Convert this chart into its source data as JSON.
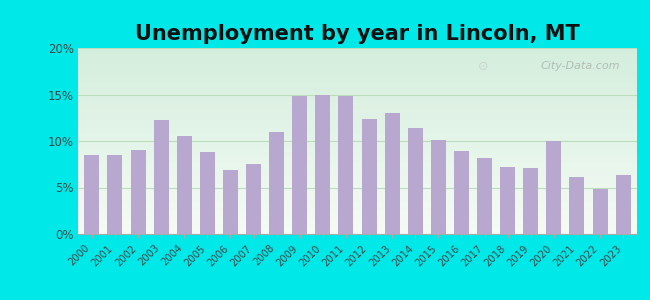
{
  "title": "Unemployment by year in Lincoln, MT",
  "years": [
    2000,
    2001,
    2002,
    2003,
    2004,
    2005,
    2006,
    2007,
    2008,
    2009,
    2010,
    2011,
    2012,
    2013,
    2014,
    2015,
    2016,
    2017,
    2018,
    2019,
    2020,
    2021,
    2022,
    2023
  ],
  "values": [
    8.5,
    8.5,
    9.0,
    12.3,
    10.5,
    8.8,
    6.9,
    7.5,
    11.0,
    14.8,
    15.0,
    14.8,
    12.4,
    13.0,
    11.4,
    10.1,
    8.9,
    8.2,
    7.2,
    7.1,
    10.0,
    6.1,
    4.8,
    6.3
  ],
  "bar_color": "#b8a8d0",
  "outer_background": "#00e8e8",
  "plot_bg_top": "#f0faf0",
  "plot_bg_bottom": "#d0f0d8",
  "ylim": [
    0,
    20
  ],
  "yticks": [
    0,
    5,
    10,
    15,
    20
  ],
  "title_fontsize": 15,
  "watermark": "City-Data.com",
  "grid_color": "#c8e8c8"
}
